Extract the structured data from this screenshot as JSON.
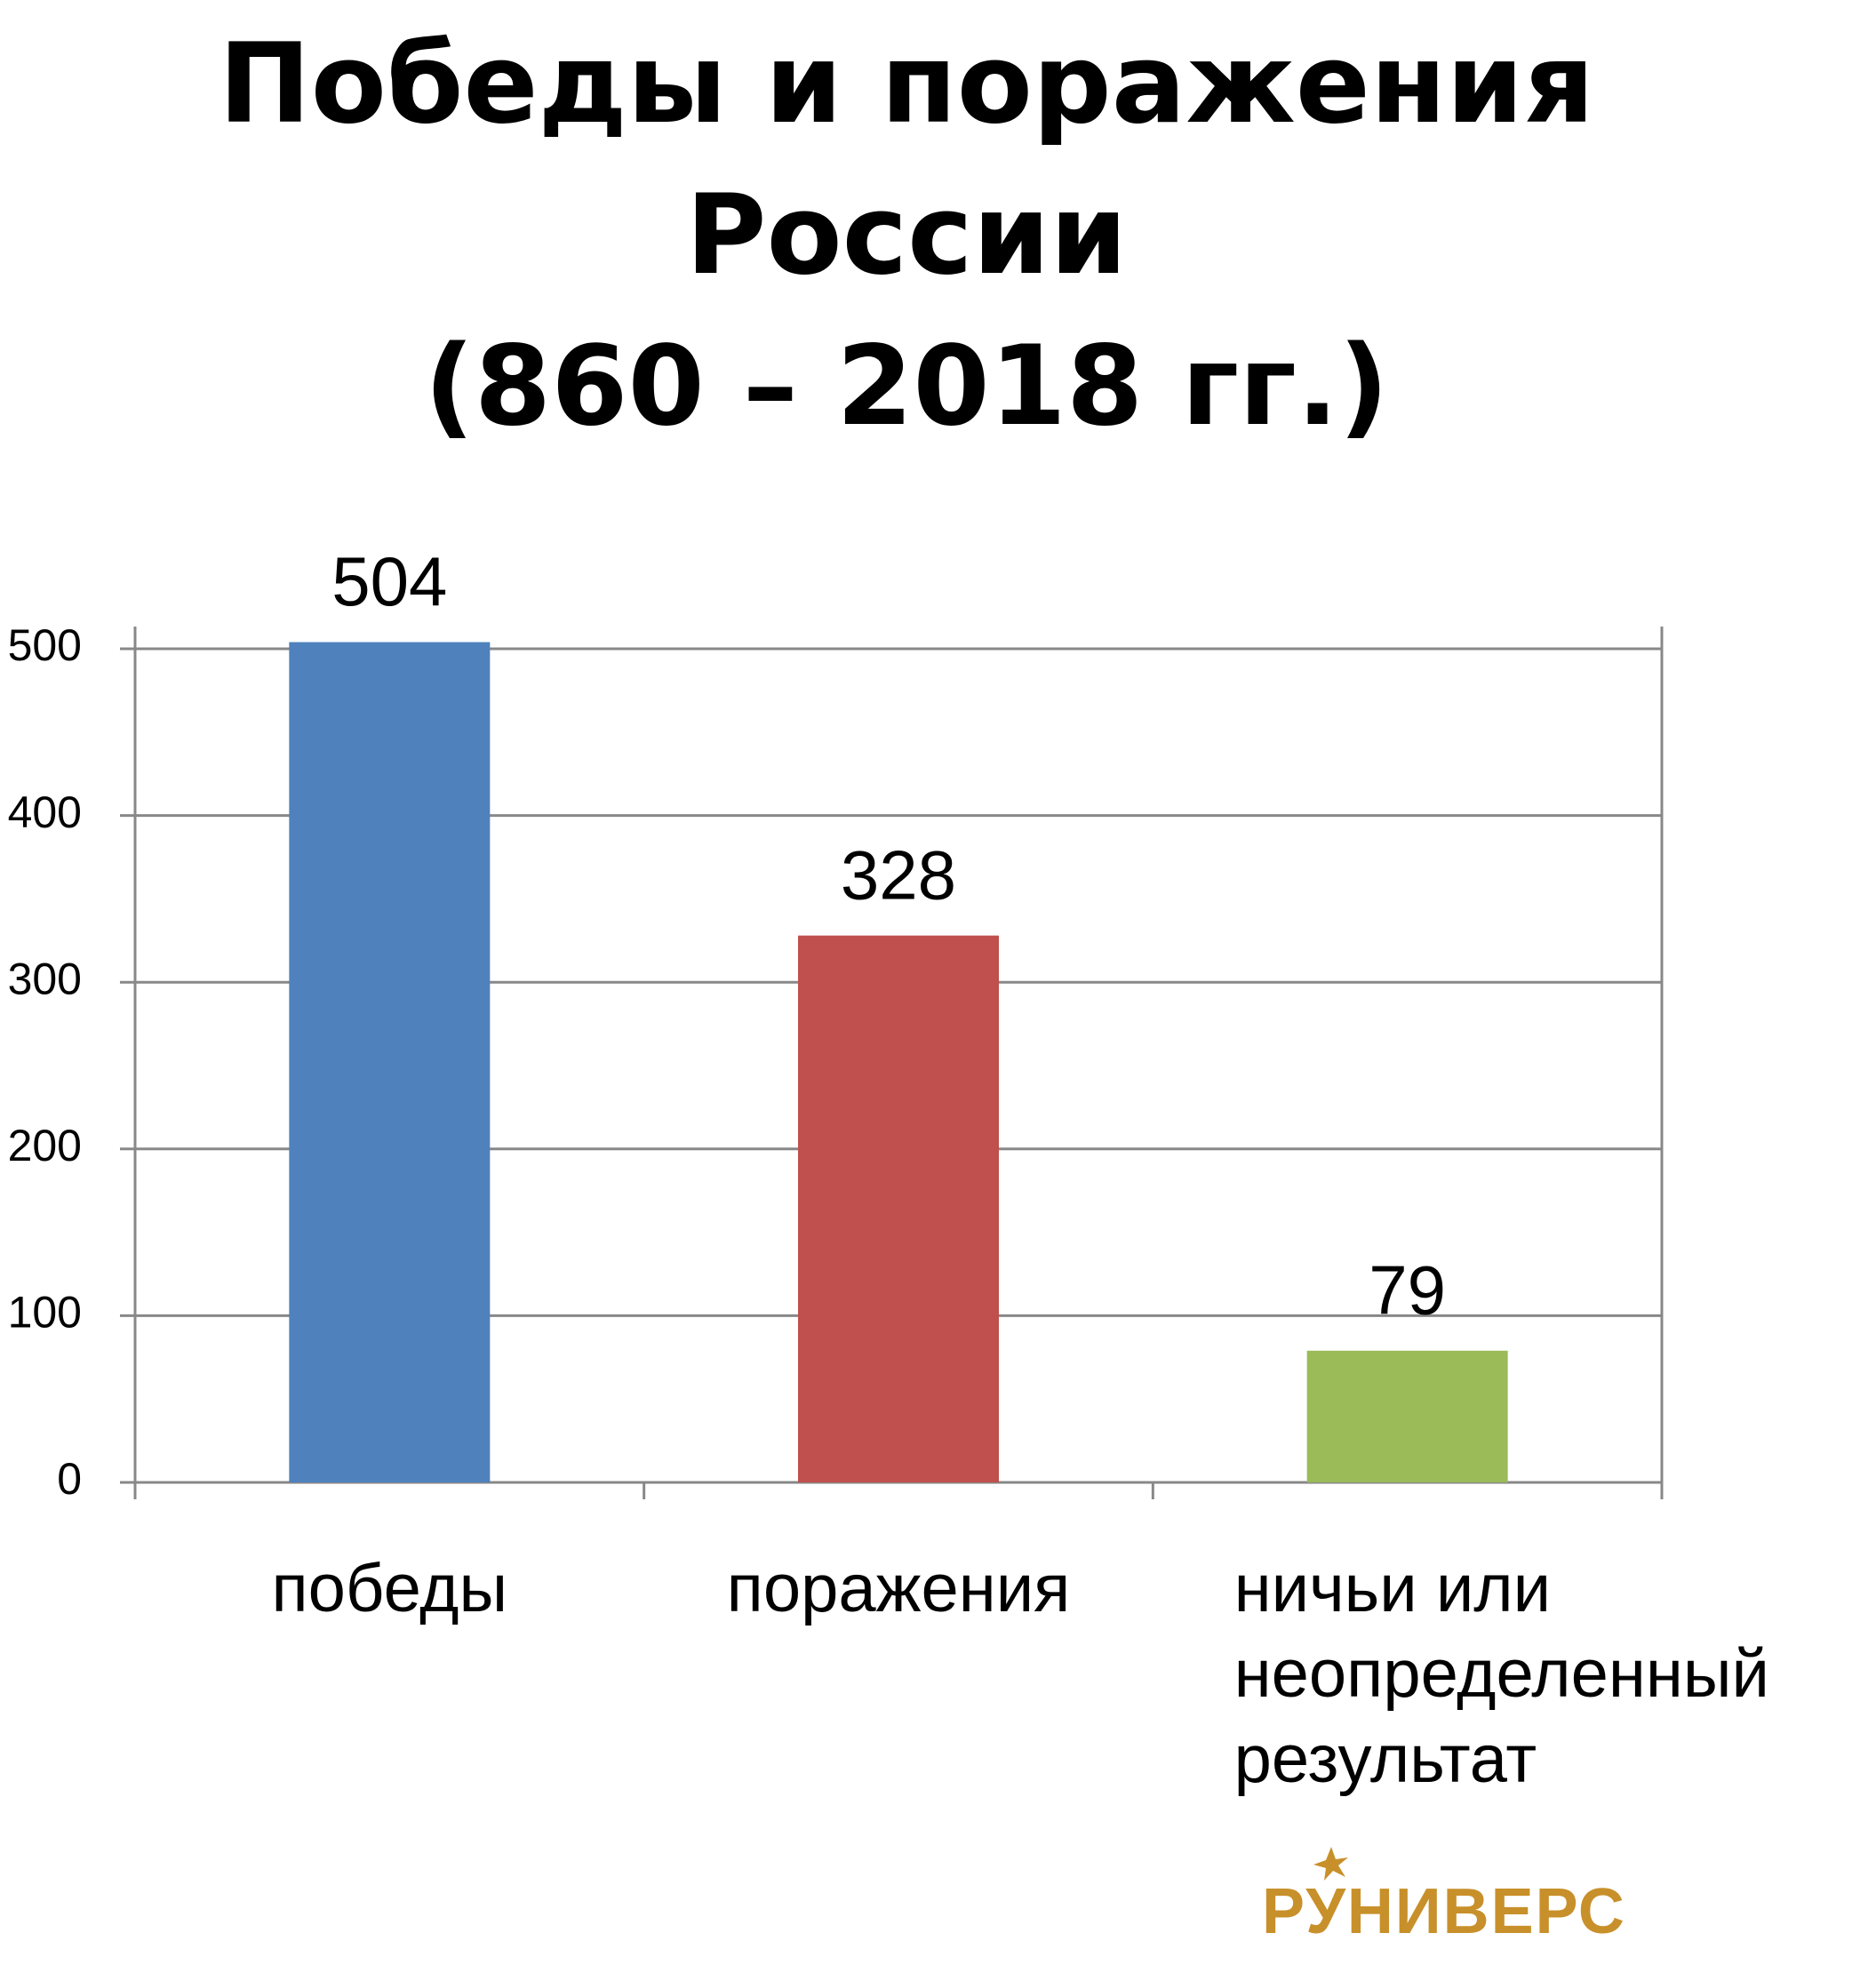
{
  "chart_data": {
    "type": "bar",
    "title": "Победы и поражения России\n(860  –  2018 гг.)",
    "categories": [
      "победы",
      "поражения",
      "ничьи или неопределенный результат"
    ],
    "values": [
      504,
      328,
      79
    ],
    "colors": [
      "#4f81bd",
      "#c0504d",
      "#9bbb59"
    ],
    "ylim": [
      0,
      500
    ],
    "yticks": [
      0,
      100,
      200,
      300,
      400,
      500
    ],
    "grid": true
  },
  "logo": "РУНИВЕРС"
}
